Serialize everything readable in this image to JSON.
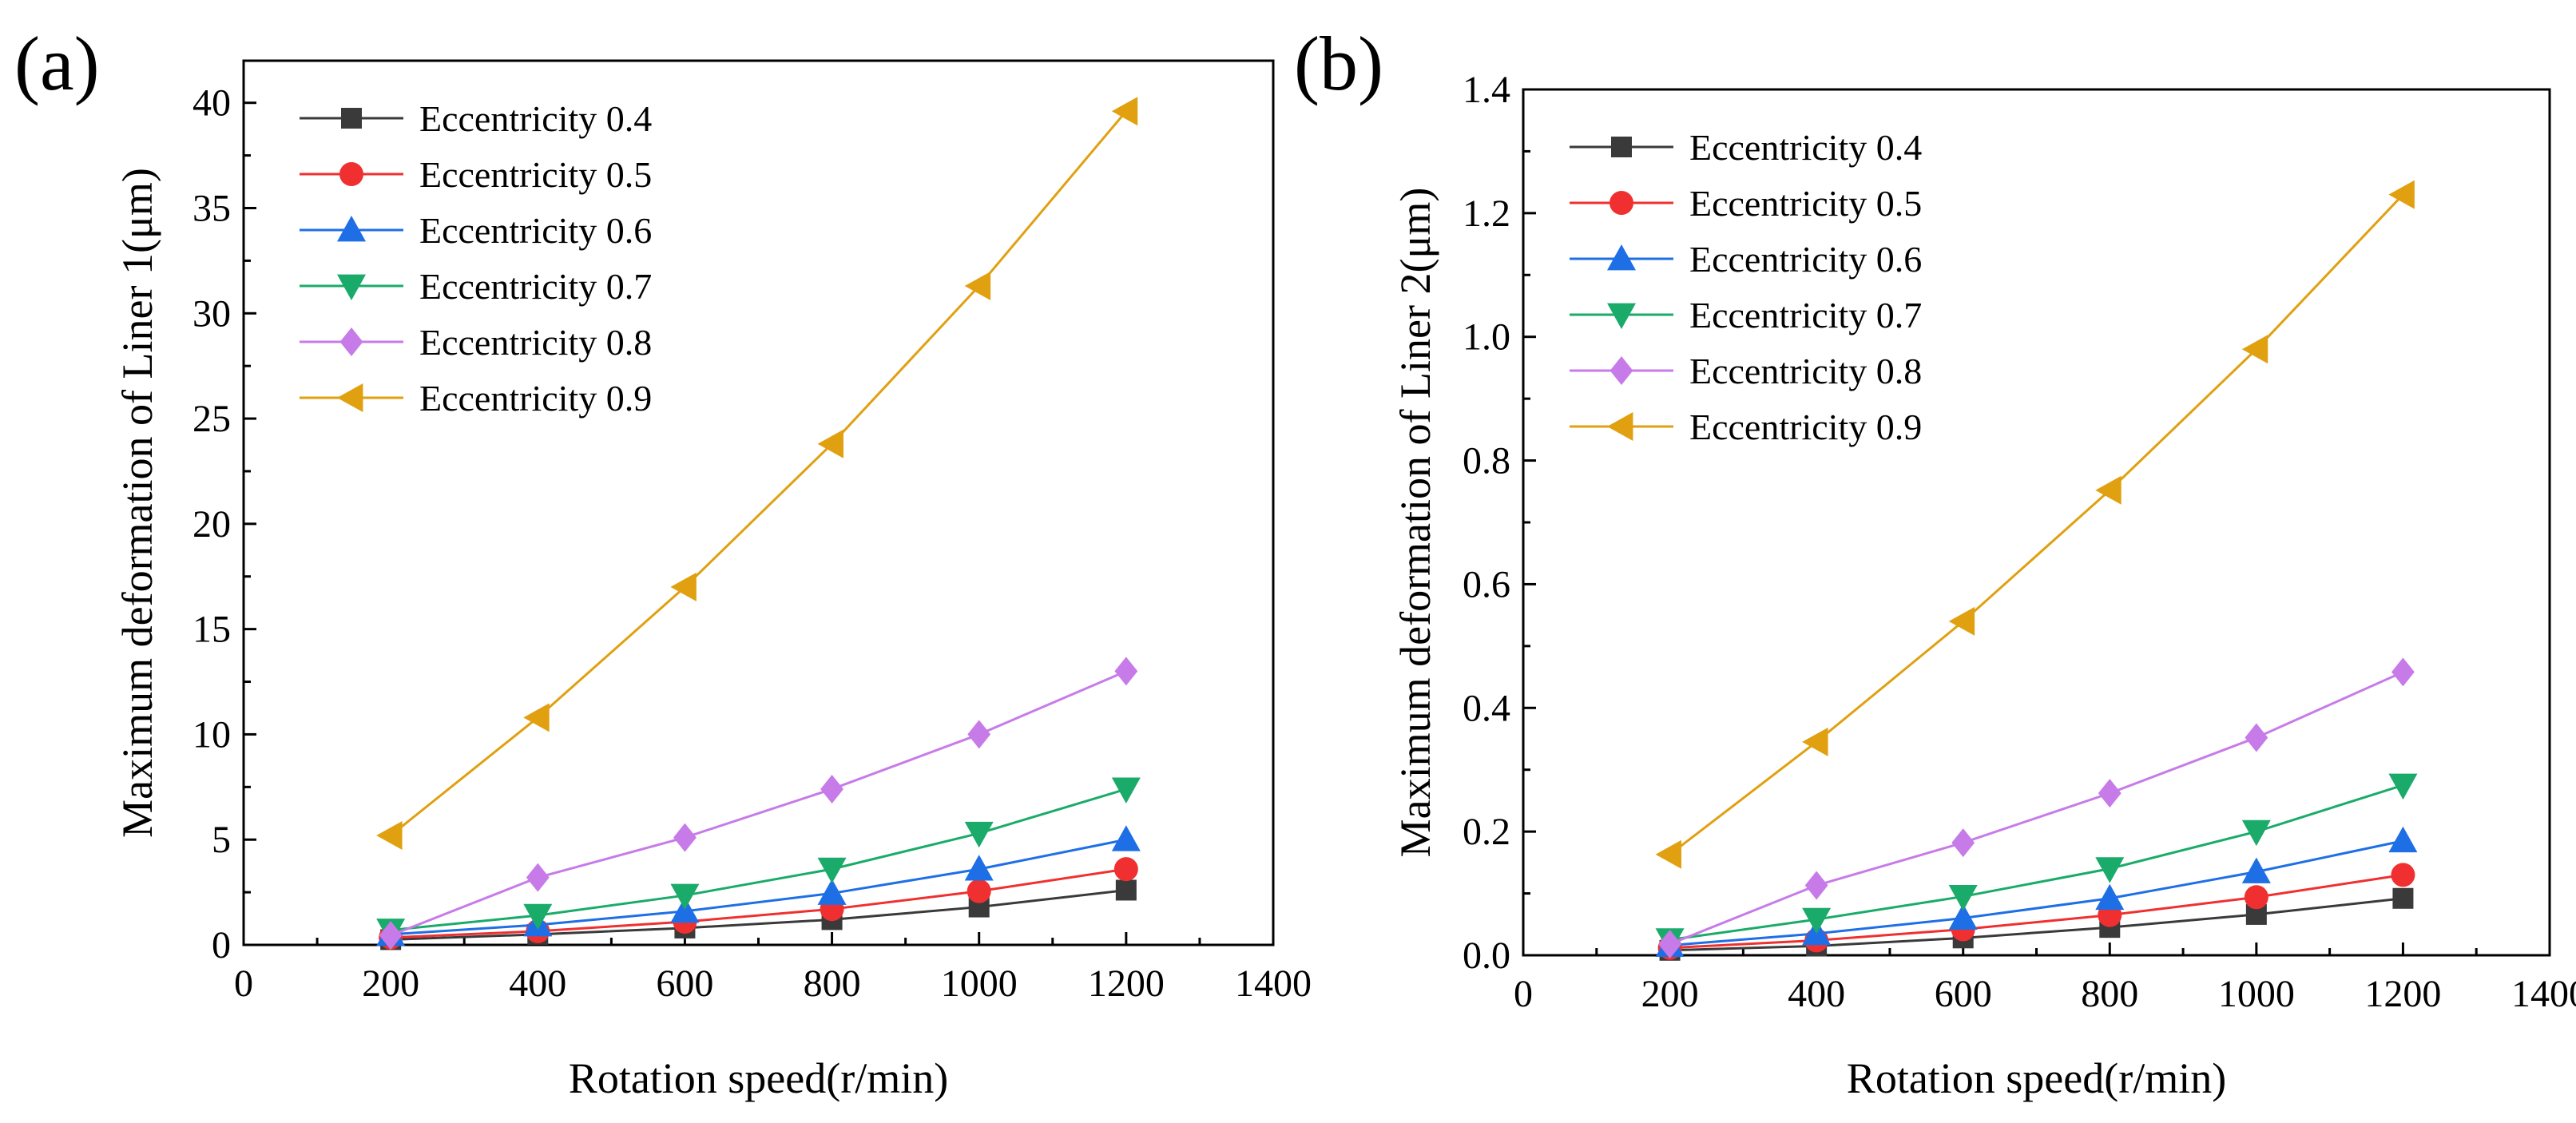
{
  "chart_data": [
    {
      "type": "line",
      "panel_label": "(a)",
      "xlabel": "Rotation speed(r/min)",
      "ylabel": "Maximum deformation of Liner 1(μm)",
      "xlim": [
        0,
        1400
      ],
      "ylim": [
        0,
        42
      ],
      "xticks": [
        0,
        200,
        400,
        600,
        800,
        1000,
        1200,
        1400
      ],
      "yticks": [
        0,
        5,
        10,
        15,
        20,
        25,
        30,
        35,
        40
      ],
      "xtick_labels": [
        "0",
        "200",
        "400",
        "600",
        "800",
        "1000",
        "1200",
        "1400"
      ],
      "ytick_labels": [
        "0",
        "5",
        "10",
        "15",
        "20",
        "25",
        "30",
        "35",
        "40"
      ],
      "legend_position": "top-left",
      "x": [
        200,
        400,
        600,
        800,
        1000,
        1200
      ],
      "series": [
        {
          "name": "Eccentricity 0.4",
          "color": "#3a3a3a",
          "marker": "square",
          "values": [
            0.25,
            0.5,
            0.8,
            1.2,
            1.8,
            2.6
          ]
        },
        {
          "name": "Eccentricity 0.5",
          "color": "#f03030",
          "marker": "circle",
          "values": [
            0.35,
            0.65,
            1.1,
            1.7,
            2.55,
            3.6
          ]
        },
        {
          "name": "Eccentricity 0.6",
          "color": "#1e6fe6",
          "marker": "triangle-up",
          "values": [
            0.5,
            0.95,
            1.6,
            2.45,
            3.6,
            5.0
          ]
        },
        {
          "name": "Eccentricity 0.7",
          "color": "#1aab6a",
          "marker": "triangle-down",
          "values": [
            0.7,
            1.4,
            2.35,
            3.6,
            5.3,
            7.4
          ]
        },
        {
          "name": "Eccentricity 0.8",
          "color": "#c77be8",
          "marker": "diamond",
          "values": [
            0.45,
            3.2,
            5.1,
            7.4,
            10.0,
            13.0
          ]
        },
        {
          "name": "Eccentricity 0.9",
          "color": "#e0a010",
          "marker": "triangle-left",
          "values": [
            5.2,
            10.8,
            17.0,
            23.8,
            31.3,
            39.6
          ]
        }
      ]
    },
    {
      "type": "line",
      "panel_label": "(b)",
      "xlabel": "Rotation speed(r/min)",
      "ylabel": "Maximum deformation of Liner 2(μm)",
      "xlim": [
        0,
        1400
      ],
      "ylim": [
        0,
        1.4
      ],
      "xticks": [
        0,
        200,
        400,
        600,
        800,
        1000,
        1200,
        1400
      ],
      "yticks": [
        0.0,
        0.2,
        0.4,
        0.6,
        0.8,
        1.0,
        1.2,
        1.4
      ],
      "xtick_labels": [
        "0",
        "200",
        "400",
        "600",
        "800",
        "1000",
        "1200",
        "1400"
      ],
      "ytick_labels": [
        "0.0",
        "0.2",
        "0.4",
        "0.6",
        "0.8",
        "1.0",
        "1.2",
        "1.4"
      ],
      "legend_position": "top-left",
      "x": [
        200,
        400,
        600,
        800,
        1000,
        1200
      ],
      "series": [
        {
          "name": "Eccentricity 0.4",
          "color": "#3a3a3a",
          "marker": "square",
          "values": [
            0.008,
            0.015,
            0.028,
            0.045,
            0.066,
            0.092
          ]
        },
        {
          "name": "Eccentricity 0.5",
          "color": "#f03030",
          "marker": "circle",
          "values": [
            0.012,
            0.024,
            0.042,
            0.065,
            0.094,
            0.13
          ]
        },
        {
          "name": "Eccentricity 0.6",
          "color": "#1e6fe6",
          "marker": "triangle-up",
          "values": [
            0.016,
            0.035,
            0.06,
            0.092,
            0.135,
            0.185
          ]
        },
        {
          "name": "Eccentricity 0.7",
          "color": "#1aab6a",
          "marker": "triangle-down",
          "values": [
            0.025,
            0.058,
            0.095,
            0.14,
            0.2,
            0.275
          ]
        },
        {
          "name": "Eccentricity 0.8",
          "color": "#c77be8",
          "marker": "diamond",
          "values": [
            0.018,
            0.113,
            0.182,
            0.262,
            0.352,
            0.458
          ]
        },
        {
          "name": "Eccentricity 0.9",
          "color": "#e0a010",
          "marker": "triangle-left",
          "values": [
            0.163,
            0.345,
            0.54,
            0.752,
            0.98,
            1.23
          ]
        }
      ]
    }
  ]
}
